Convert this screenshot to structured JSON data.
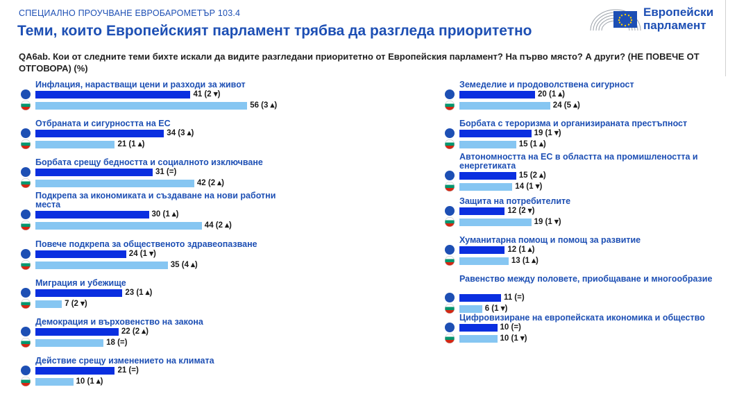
{
  "header": {
    "kicker": "СПЕЦИАЛНО ПРОУЧВАНЕ ЕВРОБАРОМЕТЪР 103.4",
    "title": "Теми, които Европейският парламент трябва да разгледа приоритетно",
    "question_line1": "QA6ab. Кои от следните теми бихте искали да видите разгледани приоритетно от Европейския парламент? На първо място?  А други? (НЕ ПОВЕЧЕ ОТ",
    "question_line2": "ОТГОВОРА) (%)"
  },
  "logo": {
    "line1": "Европейски",
    "line2": "парламент",
    "icon": "eu-flag-icon"
  },
  "colors": {
    "eu_bar": "#0a2fe0",
    "bg_bar": "#86c6f2",
    "accent": "#1d4fb4"
  },
  "chart_data": {
    "type": "bar",
    "orientation": "horizontal",
    "series": [
      {
        "marker": "eu-circle-icon"
      },
      {
        "marker": "bulgaria-flag-icon"
      }
    ],
    "left_column": [
      {
        "category": "Инфлация, нарастващи цени и разходи за живот",
        "eu": 41,
        "eu_label": "41 (2 ▾)",
        "bg": 56,
        "bg_label": "56 (3 ▴)"
      },
      {
        "category": "Отбраната и сигурността на ЕС",
        "eu": 34,
        "eu_label": "34 (3 ▴)",
        "bg": 21,
        "bg_label": "21 (1 ▴)"
      },
      {
        "category": "Борбата срещу бедността и социалното изключване",
        "eu": 31,
        "eu_label": "31 (=)",
        "bg": 42,
        "bg_label": "42 (2 ▴)"
      },
      {
        "category": "Подкрепа за икономиката и създаване на нови работни места",
        "eu": 30,
        "eu_label": "30 (1 ▴)",
        "bg": 44,
        "bg_label": "44 (2 ▴)"
      },
      {
        "category": "Повече подкрепа за общественото здравеопазване",
        "eu": 24,
        "eu_label": "24 (1 ▾)",
        "bg": 35,
        "bg_label": "35 (4 ▴)"
      },
      {
        "category": "Миграция и убежище",
        "eu": 23,
        "eu_label": "23 (1 ▴)",
        "bg": 7,
        "bg_label": "7 (2 ▾)"
      },
      {
        "category": "Демокрация и върховенство на закона",
        "eu": 22,
        "eu_label": "22 (2 ▴)",
        "bg": 18,
        "bg_label": "18 (=)"
      },
      {
        "category": "Действие срещу изменението на климата",
        "eu": 21,
        "eu_label": "21 (=)",
        "bg": 10,
        "bg_label": "10 (1 ▴)"
      }
    ],
    "right_column": [
      {
        "category": "Земеделие и продоволствена сигурност",
        "eu": 20,
        "eu_label": "20 (1 ▴)",
        "bg": 24,
        "bg_label": "24 (5 ▴)"
      },
      {
        "category": "Борбата с тероризма и организираната престъпност",
        "eu": 19,
        "eu_label": "19 (1 ▾)",
        "bg": 15,
        "bg_label": "15 (1 ▴)"
      },
      {
        "category": "Автономността на ЕС в областта на промишлеността и енергетиката",
        "eu": 15,
        "eu_label": "15 (2 ▴)",
        "bg": 14,
        "bg_label": "14 (1 ▾)"
      },
      {
        "category": "Защита на потребителите",
        "eu": 12,
        "eu_label": "12 (2 ▾)",
        "bg": 19,
        "bg_label": "19 (1 ▾)"
      },
      {
        "category": "Хуманитарна помощ и помощ за развитие",
        "eu": 12,
        "eu_label": "12 (1 ▴)",
        "bg": 13,
        "bg_label": "13 (1 ▴)"
      },
      {
        "category": "Равенство между половете, приобщаване и многообразие",
        "eu": 11,
        "eu_label": "11 (=)",
        "bg": 6,
        "bg_label": "6 (1 ▾)"
      },
      {
        "category": "Цифровизиране на европейската икономика и общество",
        "eu": 10,
        "eu_label": "10 (=)",
        "bg": 10,
        "bg_label": "10 (1 ▾)"
      }
    ]
  }
}
